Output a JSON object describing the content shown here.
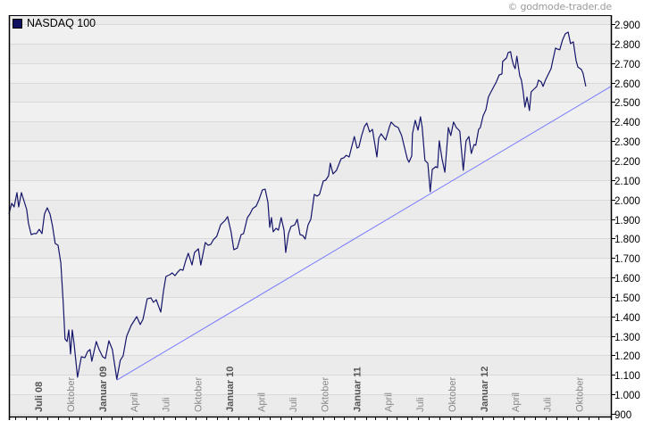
{
  "watermark": "© godmode-trader.de",
  "chart_data": {
    "type": "line",
    "title": "",
    "xlabel": "",
    "ylabel": "",
    "legend": {
      "placement": "top-left",
      "entries": [
        "NASDAQ 100"
      ]
    },
    "grid": true,
    "ylim": [
      900,
      2950
    ],
    "xlim": [
      "2008-04-12",
      "2013-01-05"
    ],
    "y_axis_side": "right",
    "y_ticks": [
      900,
      1000,
      1100,
      1200,
      1300,
      1400,
      1500,
      1600,
      1700,
      1800,
      1900,
      2000,
      2100,
      2200,
      2300,
      2400,
      2500,
      2600,
      2700,
      2800,
      2900
    ],
    "y_tick_labels": [
      "900",
      "1.000",
      "1.100",
      "1.200",
      "1.300",
      "1.400",
      "1.500",
      "1.600",
      "1.700",
      "1.800",
      "1.900",
      "2.000",
      "2.100",
      "2.200",
      "2.300",
      "2.400",
      "2.500",
      "2.600",
      "2.700",
      "2.800",
      "2.900"
    ],
    "x_tick_labels": [
      {
        "date": "2008-07-01",
        "label": "Juli 08",
        "bold": true
      },
      {
        "date": "2008-10-01",
        "label": "Oktober",
        "bold": false
      },
      {
        "date": "2009-01-01",
        "label": "Januar 09",
        "bold": true
      },
      {
        "date": "2009-04-01",
        "label": "April",
        "bold": false
      },
      {
        "date": "2009-07-01",
        "label": "Juli",
        "bold": false
      },
      {
        "date": "2009-10-01",
        "label": "Oktober",
        "bold": false
      },
      {
        "date": "2010-01-01",
        "label": "Januar 10",
        "bold": true
      },
      {
        "date": "2010-04-01",
        "label": "April",
        "bold": false
      },
      {
        "date": "2010-07-01",
        "label": "Juli",
        "bold": false
      },
      {
        "date": "2010-10-01",
        "label": "Oktober",
        "bold": false
      },
      {
        "date": "2011-01-01",
        "label": "Januar 11",
        "bold": true
      },
      {
        "date": "2011-04-01",
        "label": "April",
        "bold": false
      },
      {
        "date": "2011-07-01",
        "label": "Juli",
        "bold": false
      },
      {
        "date": "2011-10-01",
        "label": "Oktober",
        "bold": false
      },
      {
        "date": "2012-01-01",
        "label": "Januar 12",
        "bold": true
      },
      {
        "date": "2012-04-01",
        "label": "April",
        "bold": false
      },
      {
        "date": "2012-07-01",
        "label": "Juli",
        "bold": false
      },
      {
        "date": "2012-10-01",
        "label": "Oktober",
        "bold": false
      }
    ],
    "colors": {
      "series": "#15156b",
      "trendline": "#7a7aff",
      "band_a": "#f0f0f0",
      "band_b": "#ebebeb",
      "grid": "#d9d9d9"
    },
    "series": [
      {
        "name": "NASDAQ 100",
        "points": [
          [
            "2008-04-12",
            1925
          ],
          [
            "2008-04-20",
            1980
          ],
          [
            "2008-04-27",
            1962
          ],
          [
            "2008-05-05",
            2035
          ],
          [
            "2008-05-10",
            1962
          ],
          [
            "2008-05-18",
            2035
          ],
          [
            "2008-05-25",
            1994
          ],
          [
            "2008-06-02",
            1948
          ],
          [
            "2008-06-07",
            1879
          ],
          [
            "2008-06-15",
            1820
          ],
          [
            "2008-06-23",
            1825
          ],
          [
            "2008-06-30",
            1825
          ],
          [
            "2008-07-08",
            1847
          ],
          [
            "2008-07-16",
            1825
          ],
          [
            "2008-07-23",
            1925
          ],
          [
            "2008-07-31",
            1957
          ],
          [
            "2008-08-08",
            1925
          ],
          [
            "2008-08-15",
            1866
          ],
          [
            "2008-08-23",
            1774
          ],
          [
            "2008-08-31",
            1765
          ],
          [
            "2008-09-08",
            1674
          ],
          [
            "2008-09-15",
            1468
          ],
          [
            "2008-09-20",
            1284
          ],
          [
            "2008-09-26",
            1271
          ],
          [
            "2008-10-01",
            1330
          ],
          [
            "2008-10-06",
            1207
          ],
          [
            "2008-10-11",
            1330
          ],
          [
            "2008-10-16",
            1262
          ],
          [
            "2008-10-26",
            1088
          ],
          [
            "2008-11-06",
            1193
          ],
          [
            "2008-11-16",
            1188
          ],
          [
            "2008-11-24",
            1220
          ],
          [
            "2008-12-01",
            1230
          ],
          [
            "2008-12-06",
            1170
          ],
          [
            "2008-12-19",
            1271
          ],
          [
            "2008-12-27",
            1230
          ],
          [
            "2009-01-06",
            1193
          ],
          [
            "2009-01-14",
            1184
          ],
          [
            "2009-01-24",
            1275
          ],
          [
            "2009-02-03",
            1230
          ],
          [
            "2009-02-16",
            1078
          ],
          [
            "2009-02-26",
            1175
          ],
          [
            "2009-03-06",
            1198
          ],
          [
            "2009-03-16",
            1298
          ],
          [
            "2009-03-29",
            1353
          ],
          [
            "2009-04-14",
            1399
          ],
          [
            "2009-04-24",
            1358
          ],
          [
            "2009-05-02",
            1385
          ],
          [
            "2009-05-14",
            1490
          ],
          [
            "2009-05-25",
            1495
          ],
          [
            "2009-06-01",
            1472
          ],
          [
            "2009-06-09",
            1486
          ],
          [
            "2009-06-22",
            1422
          ],
          [
            "2009-06-30",
            1532
          ],
          [
            "2009-07-07",
            1605
          ],
          [
            "2009-07-18",
            1614
          ],
          [
            "2009-07-25",
            1623
          ],
          [
            "2009-08-02",
            1609
          ],
          [
            "2009-08-10",
            1628
          ],
          [
            "2009-08-17",
            1641
          ],
          [
            "2009-08-25",
            1637
          ],
          [
            "2009-09-02",
            1687
          ],
          [
            "2009-09-09",
            1724
          ],
          [
            "2009-09-20",
            1664
          ],
          [
            "2009-09-27",
            1728
          ],
          [
            "2009-10-08",
            1747
          ],
          [
            "2009-10-15",
            1664
          ],
          [
            "2009-10-28",
            1779
          ],
          [
            "2009-11-05",
            1765
          ],
          [
            "2009-11-13",
            1770
          ],
          [
            "2009-11-20",
            1793
          ],
          [
            "2009-11-30",
            1811
          ],
          [
            "2009-12-11",
            1870
          ],
          [
            "2009-12-24",
            1893
          ],
          [
            "2009-12-31",
            1912
          ],
          [
            "2010-01-10",
            1834
          ],
          [
            "2010-01-18",
            1742
          ],
          [
            "2010-01-28",
            1751
          ],
          [
            "2010-02-08",
            1820
          ],
          [
            "2010-02-15",
            1825
          ],
          [
            "2010-02-26",
            1907
          ],
          [
            "2010-03-05",
            1925
          ],
          [
            "2010-03-13",
            1953
          ],
          [
            "2010-03-23",
            1966
          ],
          [
            "2010-03-31",
            1998
          ],
          [
            "2010-04-10",
            2049
          ],
          [
            "2010-04-18",
            2053
          ],
          [
            "2010-04-26",
            1985
          ],
          [
            "2010-05-01",
            1857
          ],
          [
            "2010-05-06",
            1907
          ],
          [
            "2010-05-11",
            1834
          ],
          [
            "2010-05-19",
            1852
          ],
          [
            "2010-05-26",
            1843
          ],
          [
            "2010-06-03",
            1907
          ],
          [
            "2010-06-11",
            1843
          ],
          [
            "2010-06-16",
            1728
          ],
          [
            "2010-06-24",
            1825
          ],
          [
            "2010-07-01",
            1861
          ],
          [
            "2010-07-12",
            1870
          ],
          [
            "2010-07-19",
            1898
          ],
          [
            "2010-07-27",
            1820
          ],
          [
            "2010-08-04",
            1815
          ],
          [
            "2010-08-11",
            1797
          ],
          [
            "2010-08-19",
            1870
          ],
          [
            "2010-08-27",
            1898
          ],
          [
            "2010-09-06",
            2026
          ],
          [
            "2010-09-14",
            2017
          ],
          [
            "2010-09-21",
            2026
          ],
          [
            "2010-10-02",
            2095
          ],
          [
            "2010-10-09",
            2099
          ],
          [
            "2010-10-17",
            2122
          ],
          [
            "2010-10-22",
            2186
          ],
          [
            "2010-10-30",
            2131
          ],
          [
            "2010-11-09",
            2150
          ],
          [
            "2010-11-22",
            2209
          ],
          [
            "2010-11-30",
            2214
          ],
          [
            "2010-12-07",
            2227
          ],
          [
            "2010-12-15",
            2218
          ],
          [
            "2010-12-30",
            2323
          ],
          [
            "2011-01-07",
            2264
          ],
          [
            "2011-01-12",
            2269
          ],
          [
            "2011-01-20",
            2328
          ],
          [
            "2011-01-28",
            2374
          ],
          [
            "2011-02-04",
            2392
          ],
          [
            "2011-02-12",
            2346
          ],
          [
            "2011-02-20",
            2360
          ],
          [
            "2011-03-05",
            2218
          ],
          [
            "2011-03-10",
            2314
          ],
          [
            "2011-03-17",
            2337
          ],
          [
            "2011-03-30",
            2305
          ],
          [
            "2011-04-10",
            2374
          ],
          [
            "2011-04-15",
            2397
          ],
          [
            "2011-04-25",
            2378
          ],
          [
            "2011-05-05",
            2369
          ],
          [
            "2011-05-15",
            2328
          ],
          [
            "2011-05-23",
            2269
          ],
          [
            "2011-05-31",
            2209
          ],
          [
            "2011-06-05",
            2191
          ],
          [
            "2011-06-13",
            2223
          ],
          [
            "2011-06-15",
            2337
          ],
          [
            "2011-06-23",
            2406
          ],
          [
            "2011-07-01",
            2356
          ],
          [
            "2011-07-08",
            2424
          ],
          [
            "2011-07-13",
            2369
          ],
          [
            "2011-07-21",
            2200
          ],
          [
            "2011-07-29",
            2186
          ],
          [
            "2011-08-05",
            2040
          ],
          [
            "2011-08-11",
            2154
          ],
          [
            "2011-08-21",
            2168
          ],
          [
            "2011-08-26",
            2163
          ],
          [
            "2011-08-31",
            2301
          ],
          [
            "2011-09-08",
            2209
          ],
          [
            "2011-09-16",
            2140
          ],
          [
            "2011-09-26",
            2369
          ],
          [
            "2011-10-03",
            2328
          ],
          [
            "2011-10-11",
            2397
          ],
          [
            "2011-10-19",
            2369
          ],
          [
            "2011-10-29",
            2351
          ],
          [
            "2011-11-08",
            2150
          ],
          [
            "2011-11-16",
            2301
          ],
          [
            "2011-11-24",
            2323
          ],
          [
            "2011-12-01",
            2236
          ],
          [
            "2011-12-09",
            2282
          ],
          [
            "2011-12-14",
            2278
          ],
          [
            "2011-12-22",
            2360
          ],
          [
            "2011-12-27",
            2369
          ],
          [
            "2012-01-04",
            2429
          ],
          [
            "2012-01-12",
            2461
          ],
          [
            "2012-01-19",
            2525
          ],
          [
            "2012-01-24",
            2543
          ],
          [
            "2012-02-04",
            2580
          ],
          [
            "2012-02-11",
            2603
          ],
          [
            "2012-02-19",
            2639
          ],
          [
            "2012-02-27",
            2644
          ],
          [
            "2012-02-29",
            2708
          ],
          [
            "2012-03-11",
            2726
          ],
          [
            "2012-03-16",
            2754
          ],
          [
            "2012-03-23",
            2758
          ],
          [
            "2012-03-26",
            2726
          ],
          [
            "2012-03-31",
            2690
          ],
          [
            "2012-04-05",
            2671
          ],
          [
            "2012-04-10",
            2735
          ],
          [
            "2012-04-18",
            2635
          ],
          [
            "2012-04-23",
            2612
          ],
          [
            "2012-04-28",
            2552
          ],
          [
            "2012-05-03",
            2474
          ],
          [
            "2012-05-09",
            2525
          ],
          [
            "2012-05-16",
            2456
          ],
          [
            "2012-05-21",
            2552
          ],
          [
            "2012-05-29",
            2566
          ],
          [
            "2012-06-06",
            2580
          ],
          [
            "2012-06-11",
            2612
          ],
          [
            "2012-06-19",
            2603
          ],
          [
            "2012-06-24",
            2580
          ],
          [
            "2012-07-01",
            2612
          ],
          [
            "2012-07-07",
            2635
          ],
          [
            "2012-07-17",
            2671
          ],
          [
            "2012-07-22",
            2713
          ],
          [
            "2012-07-30",
            2777
          ],
          [
            "2012-08-04",
            2772
          ],
          [
            "2012-08-11",
            2768
          ],
          [
            "2012-08-19",
            2818
          ],
          [
            "2012-08-27",
            2850
          ],
          [
            "2012-09-04",
            2859
          ],
          [
            "2012-09-11",
            2800
          ],
          [
            "2012-09-19",
            2809
          ],
          [
            "2012-09-27",
            2713
          ],
          [
            "2012-10-02",
            2680
          ],
          [
            "2012-10-12",
            2667
          ],
          [
            "2012-10-17",
            2648
          ],
          [
            "2012-10-25",
            2580
          ]
        ]
      }
    ],
    "trendline": {
      "points": [
        [
          "2009-02-16",
          1073
        ],
        [
          "2013-01-05",
          2580
        ]
      ]
    }
  }
}
